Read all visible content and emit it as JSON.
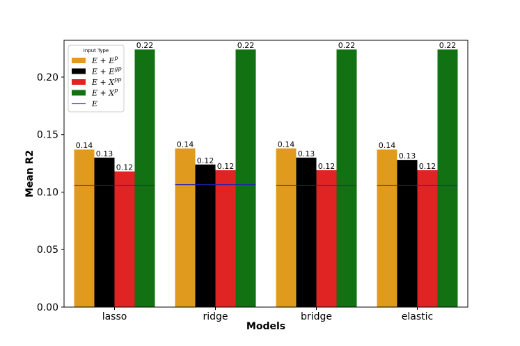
{
  "chart_data": {
    "type": "bar",
    "categories": [
      "lasso",
      "ridge",
      "bridge",
      "elastic"
    ],
    "series": [
      {
        "name": "E + E^p",
        "color": "#e09b1f",
        "values": [
          0.137,
          0.138,
          0.138,
          0.137
        ],
        "labels": [
          "0.14",
          "0.14",
          "0.14",
          "0.14"
        ]
      },
      {
        "name": "E + E^gp",
        "color": "#000000",
        "values": [
          0.13,
          0.124,
          0.13,
          0.128
        ],
        "labels": [
          "0.13",
          "0.12",
          "0.13",
          "0.13"
        ]
      },
      {
        "name": "E + X^pp",
        "color": "#e02424",
        "values": [
          0.118,
          0.119,
          0.119,
          0.119
        ],
        "labels": [
          "0.12",
          "0.12",
          "0.12",
          "0.12"
        ]
      },
      {
        "name": "E + X^p",
        "color": "#127112",
        "values": [
          0.224,
          0.224,
          0.224,
          0.224
        ],
        "labels": [
          "0.22",
          "0.22",
          "0.22",
          "0.22"
        ]
      }
    ],
    "baseline": {
      "name": "E",
      "color": "#1f1fb4",
      "values": [
        0.106,
        0.1065,
        0.106,
        0.106
      ]
    },
    "legend": {
      "title": "Input Type",
      "placement": "top-left",
      "entries": [
        {
          "base": "E + E",
          "sup": "p"
        },
        {
          "base": "E + E",
          "sup": "gp"
        },
        {
          "base": "E + X",
          "sup": "pp"
        },
        {
          "base": "E + X",
          "sup": "p"
        },
        {
          "base": "E",
          "sup": ""
        }
      ]
    },
    "xlabel": "Models",
    "ylabel": "Mean R2",
    "ylim": [
      0,
      0.232
    ],
    "yticks": [
      0.0,
      0.05,
      0.1,
      0.15,
      0.2
    ],
    "ytick_labels": [
      "0.00",
      "0.05",
      "0.10",
      "0.15",
      "0.20"
    ],
    "grid": false
  }
}
